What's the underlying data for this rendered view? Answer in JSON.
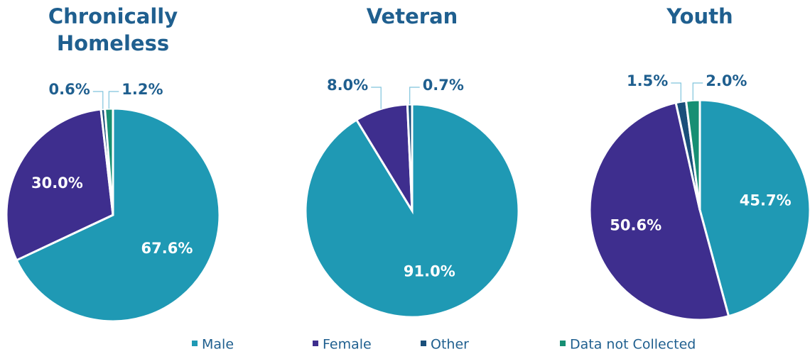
{
  "chart_data": [
    {
      "type": "pie",
      "title": "Chronically Homeless",
      "categories": [
        "Male",
        "Female",
        "Other",
        "Data not Collected"
      ],
      "values": [
        67.6,
        30.0,
        0.6,
        1.2
      ],
      "value_labels": [
        "67.6%",
        "30.0%",
        "0.6%",
        "1.2%"
      ],
      "colors": [
        "#1f99b4",
        "#3e2e8e",
        "#1a4f7a",
        "#178f73"
      ]
    },
    {
      "type": "pie",
      "title": "Veteran",
      "categories": [
        "Male",
        "Female",
        "Other"
      ],
      "values": [
        91.0,
        8.0,
        0.7
      ],
      "value_labels": [
        "91.0%",
        "8.0%",
        "0.7%"
      ],
      "colors": [
        "#1f99b4",
        "#3e2e8e",
        "#1a4f7a"
      ]
    },
    {
      "type": "pie",
      "title": "Youth",
      "categories": [
        "Male",
        "Female",
        "Other",
        "Data not Collected"
      ],
      "values": [
        45.7,
        50.6,
        1.5,
        2.0
      ],
      "value_labels": [
        "45.7%",
        "50.6%",
        "1.5%",
        "2.0%"
      ],
      "colors": [
        "#1f99b4",
        "#3e2e8e",
        "#1a4f7a",
        "#178f73"
      ]
    }
  ]
}
